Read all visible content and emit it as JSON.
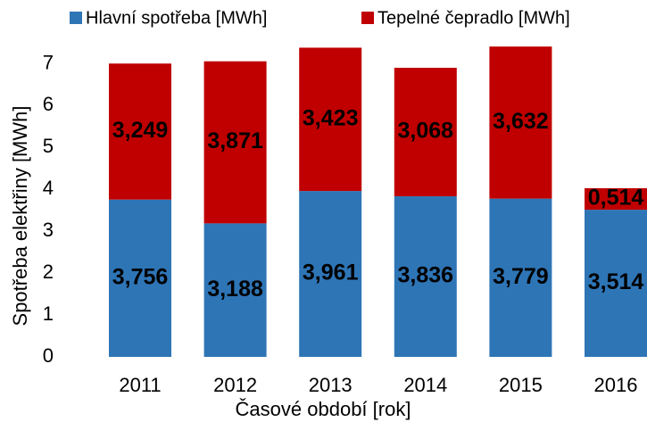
{
  "chart_data": {
    "type": "bar",
    "stacked": true,
    "x_label": "Časové období [rok]",
    "y_label": "Spotřeba elektřiny [MWh]",
    "categories": [
      "2011",
      "2012",
      "2013",
      "2014",
      "2015",
      "2016"
    ],
    "series": [
      {
        "name": "Hlavní spotřeba [MWh]",
        "color": "#2e75b6",
        "values": [
          3.756,
          3.188,
          3.961,
          3.836,
          3.779,
          3.514
        ],
        "value_labels": [
          "3,756",
          "3,188",
          "3,961",
          "3,836",
          "3,779",
          "3,514"
        ]
      },
      {
        "name": "Tepelné čepradlo [MWh]",
        "color": "#c00000",
        "values": [
          3.249,
          3.871,
          3.423,
          3.068,
          3.632,
          0.514
        ],
        "value_labels": [
          "3,249",
          "3,871",
          "3,423",
          "3,068",
          "3,632",
          "0,514"
        ]
      }
    ],
    "ylim": [
      0,
      7.5
    ],
    "yticks": [
      0,
      1,
      2,
      3,
      4,
      5,
      6,
      7
    ],
    "grid": false,
    "legend": "top"
  }
}
